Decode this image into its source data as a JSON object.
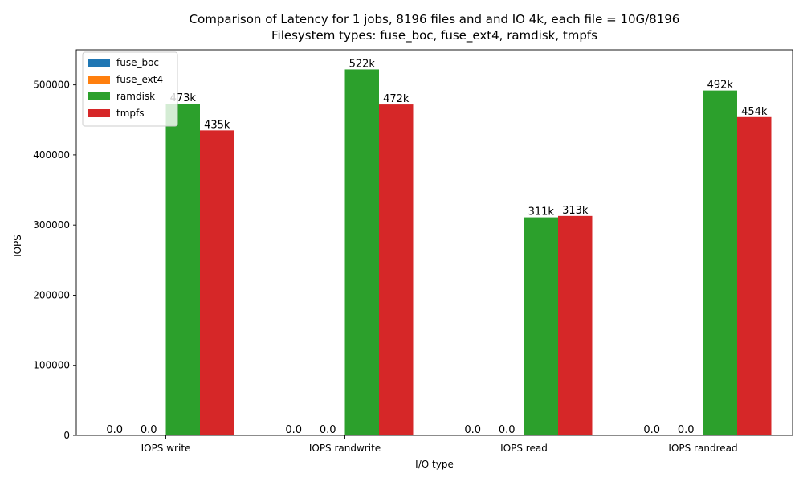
{
  "chart_data": {
    "type": "bar",
    "title": "Comparison of Latency for 1 jobs, 8196 files and  and IO 4k, each file = 10G/8196",
    "subtitle": "Filesystem types: fuse_boc, fuse_ext4, ramdisk, tmpfs",
    "xlabel": "I/O type",
    "ylabel": "IOPS",
    "ylim": [
      0,
      550000
    ],
    "yticks": [
      0,
      100000,
      200000,
      300000,
      400000,
      500000
    ],
    "ytick_labels": [
      "0",
      "100000",
      "200000",
      "300000",
      "400000",
      "500000"
    ],
    "categories": [
      "IOPS write",
      "IOPS randwrite",
      "IOPS read",
      "IOPS randread"
    ],
    "series": [
      {
        "name": "fuse_boc",
        "color": "#1f77b4",
        "values": [
          0,
          0,
          0,
          0
        ],
        "labels": [
          "0.0",
          "0.0",
          "0.0",
          "0.0"
        ]
      },
      {
        "name": "fuse_ext4",
        "color": "#ff7f0e",
        "values": [
          0,
          0,
          0,
          0
        ],
        "labels": [
          "0.0",
          "0.0",
          "0.0",
          "0.0"
        ]
      },
      {
        "name": "ramdisk",
        "color": "#2ca02c",
        "values": [
          473000,
          522000,
          311000,
          492000
        ],
        "labels": [
          "473k",
          "522k",
          "311k",
          "492k"
        ]
      },
      {
        "name": "tmpfs",
        "color": "#d62728",
        "values": [
          435000,
          472000,
          313000,
          454000
        ],
        "labels": [
          "435k",
          "472k",
          "313k",
          "454k"
        ]
      }
    ],
    "legend": "top-left",
    "grid": false
  }
}
